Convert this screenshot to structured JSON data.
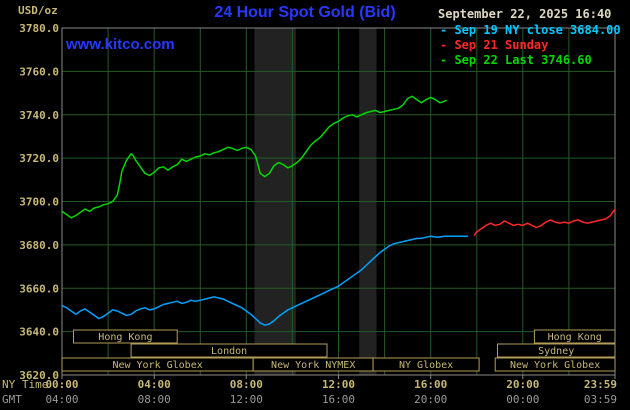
{
  "header": {
    "title": "24 Hour Spot Gold (Bid)",
    "datetime": "September 22, 2025 16:40",
    "watermark": "www.kitco.com",
    "unit_label": "USD/oz"
  },
  "legend": {
    "marker": "-",
    "items": [
      {
        "id": "sep19",
        "label": "Sep 19 NY close 3684.00",
        "color": "#00c8ff"
      },
      {
        "id": "sep21",
        "label": "Sep 21 Sunday",
        "color": "#ff2828"
      },
      {
        "id": "sep22",
        "label": "Sep 22 Last 3746.60",
        "color": "#00d800"
      }
    ]
  },
  "axes": {
    "ny_caption": "NY Time",
    "gmt_caption": "GMT",
    "y_ticks": [
      "3780.0",
      "3760.0",
      "3740.0",
      "3720.0",
      "3700.0",
      "3680.0",
      "3660.0",
      "3640.0",
      "3620.0"
    ],
    "x_ticks": [
      {
        "hour": 0,
        "ny": "00:00",
        "gmt": "04:00"
      },
      {
        "hour": 4,
        "ny": "04:00",
        "gmt": "08:00"
      },
      {
        "hour": 8,
        "ny": "08:00",
        "gmt": "12:00"
      },
      {
        "hour": 12,
        "ny": "12:00",
        "gmt": "16:00"
      },
      {
        "hour": 16,
        "ny": "16:00",
        "gmt": "20:00"
      },
      {
        "hour": 20,
        "ny": "20:00",
        "gmt": "00:00"
      },
      {
        "hour": 24,
        "ny": "23:59",
        "gmt": "03:59"
      }
    ]
  },
  "sessions": [
    {
      "row": 0,
      "start": 0.5,
      "end": 5.0,
      "label": "Hong Kong"
    },
    {
      "row": 0,
      "start": 20.5,
      "end": 24.0,
      "label": "Hong Kong"
    },
    {
      "row": 1,
      "start": 3.0,
      "end": 11.5,
      "label": "London"
    },
    {
      "row": 1,
      "start": 18.9,
      "end": 24.0,
      "label": "Sydney"
    },
    {
      "row": 2,
      "start": 0.0,
      "end": 8.3,
      "label": "New York Globex"
    },
    {
      "row": 2,
      "start": 8.3,
      "end": 13.5,
      "label": "New York NYMEX"
    },
    {
      "row": 2,
      "start": 13.5,
      "end": 18.1,
      "label": "NY Globex"
    },
    {
      "row": 2,
      "start": 18.8,
      "end": 24.0,
      "label": "New York Globex"
    }
  ],
  "colors": {
    "background": "#000000",
    "title_blue": "#2739ff",
    "date_text": "#ded8c2",
    "axis_tan": "#c8b878",
    "gmt_gray": "#9a9a9a",
    "grid_green": "#275927",
    "plot_border": "#8a8a8a",
    "band": "#222222",
    "session_border": "#b49e5a",
    "session_text": "#c8b878"
  },
  "chart_data": {
    "type": "line",
    "title": "24 Hour Spot Gold (Bid)",
    "ylabel": "USD/oz",
    "xlabel": "NY Time (hours)",
    "xlim": [
      0,
      24
    ],
    "ylim": [
      3620,
      3780
    ],
    "grid": true,
    "legend_position": "top-right",
    "shaded_bands_hours": [
      [
        8.35,
        10.15
      ],
      [
        12.9,
        13.65
      ]
    ],
    "series": [
      {
        "name": "Sep 22 Last 3746.60",
        "color": "#00d800",
        "points": [
          [
            0,
            3695.5
          ],
          [
            0.2,
            3694
          ],
          [
            0.4,
            3692.5
          ],
          [
            0.6,
            3693.5
          ],
          [
            0.8,
            3695
          ],
          [
            1,
            3696.5
          ],
          [
            1.2,
            3695.5
          ],
          [
            1.4,
            3697
          ],
          [
            1.6,
            3697.5
          ],
          [
            1.8,
            3698.5
          ],
          [
            2,
            3699
          ],
          [
            2.2,
            3700
          ],
          [
            2.4,
            3703
          ],
          [
            2.5,
            3708
          ],
          [
            2.6,
            3714
          ],
          [
            2.8,
            3719
          ],
          [
            3,
            3722
          ],
          [
            3.1,
            3721
          ],
          [
            3.2,
            3719
          ],
          [
            3.4,
            3716
          ],
          [
            3.6,
            3713
          ],
          [
            3.8,
            3712
          ],
          [
            4,
            3713.5
          ],
          [
            4.2,
            3715.5
          ],
          [
            4.4,
            3716
          ],
          [
            4.6,
            3714.5
          ],
          [
            4.8,
            3716
          ],
          [
            5,
            3717
          ],
          [
            5.2,
            3719.5
          ],
          [
            5.4,
            3718.5
          ],
          [
            5.6,
            3719.5
          ],
          [
            5.8,
            3720.5
          ],
          [
            6,
            3721
          ],
          [
            6.2,
            3722
          ],
          [
            6.4,
            3721.5
          ],
          [
            6.6,
            3722.5
          ],
          [
            6.8,
            3723
          ],
          [
            7,
            3724
          ],
          [
            7.2,
            3725
          ],
          [
            7.4,
            3724.5
          ],
          [
            7.6,
            3723.5
          ],
          [
            7.8,
            3724.5
          ],
          [
            8,
            3725
          ],
          [
            8.2,
            3724
          ],
          [
            8.4,
            3721
          ],
          [
            8.5,
            3717
          ],
          [
            8.6,
            3713
          ],
          [
            8.8,
            3711.5
          ],
          [
            9,
            3713
          ],
          [
            9.2,
            3716.5
          ],
          [
            9.4,
            3718
          ],
          [
            9.6,
            3717
          ],
          [
            9.8,
            3715.5
          ],
          [
            10,
            3716.5
          ],
          [
            10.2,
            3718
          ],
          [
            10.4,
            3720
          ],
          [
            10.6,
            3723
          ],
          [
            10.8,
            3726
          ],
          [
            11,
            3728
          ],
          [
            11.2,
            3729.5
          ],
          [
            11.4,
            3732
          ],
          [
            11.6,
            3734.5
          ],
          [
            11.8,
            3736
          ],
          [
            12,
            3737
          ],
          [
            12.2,
            3738.5
          ],
          [
            12.4,
            3739.5
          ],
          [
            12.6,
            3740
          ],
          [
            12.8,
            3739
          ],
          [
            13,
            3740
          ],
          [
            13.2,
            3741
          ],
          [
            13.4,
            3741.5
          ],
          [
            13.6,
            3742
          ],
          [
            13.8,
            3741
          ],
          [
            14,
            3741.5
          ],
          [
            14.2,
            3742
          ],
          [
            14.4,
            3742.5
          ],
          [
            14.6,
            3743
          ],
          [
            14.8,
            3744.5
          ],
          [
            15,
            3747.5
          ],
          [
            15.2,
            3748.5
          ],
          [
            15.4,
            3747
          ],
          [
            15.6,
            3745.5
          ],
          [
            15.8,
            3747
          ],
          [
            16,
            3748
          ],
          [
            16.2,
            3747
          ],
          [
            16.4,
            3745.5
          ],
          [
            16.55,
            3746
          ],
          [
            16.67,
            3746.6
          ]
        ]
      },
      {
        "name": "Sep 19 NY close 3684.00",
        "color": "#00a2ff",
        "points": [
          [
            0,
            3652
          ],
          [
            0.2,
            3651
          ],
          [
            0.4,
            3649.5
          ],
          [
            0.6,
            3648
          ],
          [
            0.8,
            3649.5
          ],
          [
            1,
            3650.5
          ],
          [
            1.2,
            3649
          ],
          [
            1.4,
            3647.5
          ],
          [
            1.6,
            3646
          ],
          [
            1.8,
            3647
          ],
          [
            2,
            3648.5
          ],
          [
            2.2,
            3650
          ],
          [
            2.4,
            3649.5
          ],
          [
            2.6,
            3648.5
          ],
          [
            2.8,
            3647.5
          ],
          [
            3,
            3648
          ],
          [
            3.2,
            3649.5
          ],
          [
            3.4,
            3650.5
          ],
          [
            3.6,
            3651
          ],
          [
            3.8,
            3650
          ],
          [
            4,
            3650.5
          ],
          [
            4.2,
            3651.5
          ],
          [
            4.4,
            3652.5
          ],
          [
            4.6,
            3653
          ],
          [
            4.8,
            3653.5
          ],
          [
            5,
            3654
          ],
          [
            5.2,
            3653
          ],
          [
            5.4,
            3653.5
          ],
          [
            5.6,
            3654.5
          ],
          [
            5.8,
            3654
          ],
          [
            6,
            3654.5
          ],
          [
            6.2,
            3655
          ],
          [
            6.4,
            3655.5
          ],
          [
            6.6,
            3656
          ],
          [
            6.8,
            3655.5
          ],
          [
            7,
            3655
          ],
          [
            7.2,
            3654
          ],
          [
            7.4,
            3653
          ],
          [
            7.6,
            3652
          ],
          [
            7.8,
            3651
          ],
          [
            8,
            3649.5
          ],
          [
            8.2,
            3648
          ],
          [
            8.4,
            3646
          ],
          [
            8.6,
            3644
          ],
          [
            8.8,
            3643
          ],
          [
            9,
            3643.5
          ],
          [
            9.2,
            3645
          ],
          [
            9.4,
            3647
          ],
          [
            9.6,
            3648.5
          ],
          [
            9.8,
            3650
          ],
          [
            10,
            3651
          ],
          [
            10.2,
            3652
          ],
          [
            10.4,
            3653
          ],
          [
            10.6,
            3654
          ],
          [
            10.8,
            3655
          ],
          [
            11,
            3656
          ],
          [
            11.2,
            3657
          ],
          [
            11.4,
            3658
          ],
          [
            11.6,
            3659
          ],
          [
            11.8,
            3660
          ],
          [
            12,
            3661
          ],
          [
            12.2,
            3662.5
          ],
          [
            12.4,
            3664
          ],
          [
            12.6,
            3665.5
          ],
          [
            12.8,
            3667
          ],
          [
            13,
            3668.5
          ],
          [
            13.2,
            3670.5
          ],
          [
            13.4,
            3672.5
          ],
          [
            13.6,
            3674.5
          ],
          [
            13.8,
            3676.5
          ],
          [
            14,
            3678
          ],
          [
            14.2,
            3679.5
          ],
          [
            14.4,
            3680.5
          ],
          [
            14.6,
            3681
          ],
          [
            14.8,
            3681.5
          ],
          [
            15,
            3682
          ],
          [
            15.2,
            3682.5
          ],
          [
            15.4,
            3683
          ],
          [
            15.6,
            3683
          ],
          [
            15.8,
            3683.5
          ],
          [
            16,
            3684
          ],
          [
            16.3,
            3683.5
          ],
          [
            16.6,
            3684
          ],
          [
            17,
            3684
          ],
          [
            17.3,
            3684
          ],
          [
            17.6,
            3684
          ]
        ]
      },
      {
        "name": "Sep 21 Sunday",
        "color": "#ff2828",
        "points": [
          [
            17.9,
            3684.5
          ],
          [
            18,
            3686
          ],
          [
            18.2,
            3687.5
          ],
          [
            18.4,
            3689
          ],
          [
            18.6,
            3690
          ],
          [
            18.8,
            3689
          ],
          [
            19,
            3689.5
          ],
          [
            19.2,
            3691
          ],
          [
            19.4,
            3690
          ],
          [
            19.6,
            3689
          ],
          [
            19.8,
            3689.5
          ],
          [
            20,
            3689
          ],
          [
            20.2,
            3690
          ],
          [
            20.4,
            3689
          ],
          [
            20.6,
            3688
          ],
          [
            20.8,
            3689
          ],
          [
            21,
            3690.5
          ],
          [
            21.2,
            3691.5
          ],
          [
            21.4,
            3690.5
          ],
          [
            21.6,
            3690
          ],
          [
            21.8,
            3690.5
          ],
          [
            22,
            3690
          ],
          [
            22.2,
            3691
          ],
          [
            22.4,
            3691.5
          ],
          [
            22.6,
            3690.5
          ],
          [
            22.8,
            3690
          ],
          [
            23,
            3690.5
          ],
          [
            23.2,
            3691
          ],
          [
            23.4,
            3691.5
          ],
          [
            23.6,
            3692
          ],
          [
            23.8,
            3693.5
          ],
          [
            24,
            3696.5
          ]
        ]
      }
    ]
  }
}
